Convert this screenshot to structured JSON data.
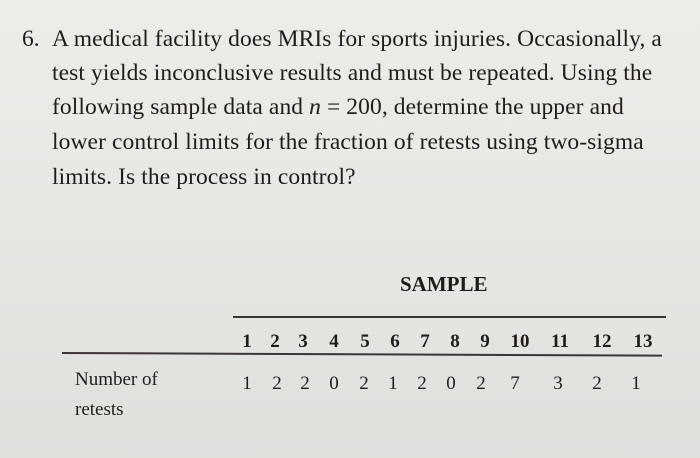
{
  "problem": {
    "number": "6.",
    "lines": [
      "A medical facility does MRIs for sports injuries. Occasionally, a",
      "test yields inconclusive results and must be repeated. Using the",
      "following sample data and ",
      "lower control limits for the fraction of retests using two-sigma",
      "limits. Is the process in control?"
    ],
    "line3_var": "n",
    "line3_rest": " = 200, determine the upper and"
  },
  "table": {
    "title": "SAMPLE",
    "row_label_line1": "Number of",
    "row_label_line2": "retests",
    "samples": [
      "1",
      "2",
      "3",
      "4",
      "5",
      "6",
      "7",
      "8",
      "9",
      "10",
      "11",
      "12",
      "13"
    ],
    "retests": [
      "1",
      "2",
      "2",
      "0",
      "2",
      "1",
      "2",
      "0",
      "2",
      "7",
      "3",
      "2",
      "1"
    ]
  }
}
